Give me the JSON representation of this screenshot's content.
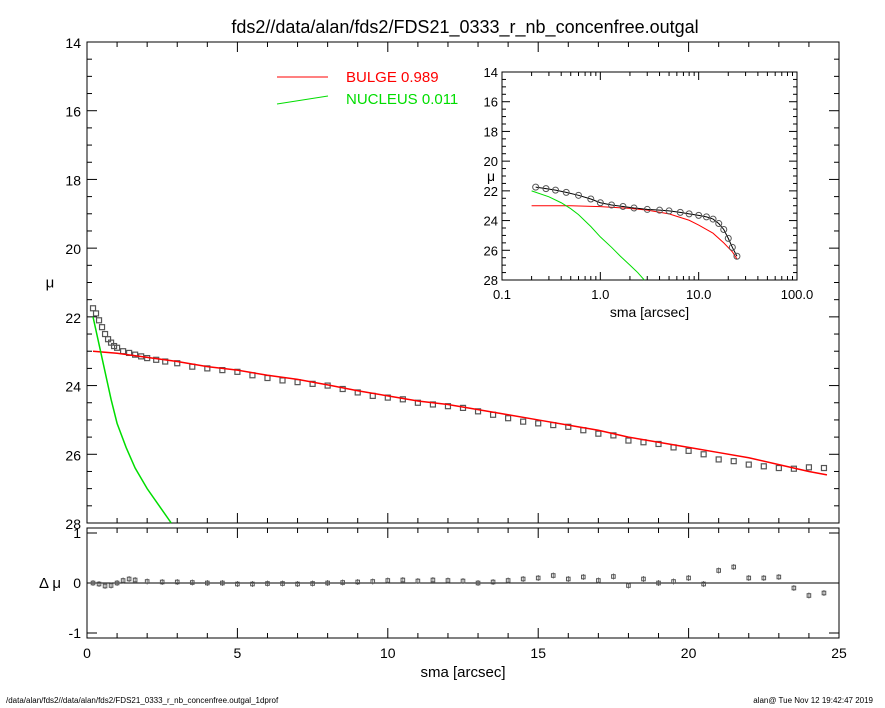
{
  "title": "fds2//data/alan/fds2/FDS21_0333_r_nb_concenfree.outgal",
  "footer": {
    "left": "/data/alan/fds2//data/alan/fds2/FDS21_0333_r_nb_concenfree.outgal_1dprof",
    "right": "alan@  Tue Nov 12 19:42:47 2019"
  },
  "colors": {
    "bulge": "#ff0000",
    "nucleus": "#00dd00",
    "points": "#555555",
    "axes": "#000000"
  },
  "chart_data": [
    {
      "type": "scatter",
      "panel": "main",
      "xlabel": "sma [arcsec]",
      "ylabel": "μ",
      "xlim": [
        0,
        25
      ],
      "ylim": [
        28,
        14
      ],
      "x_ticks": [
        "0",
        "5",
        "10",
        "15",
        "20",
        "25"
      ],
      "y_ticks": [
        "14",
        "16",
        "18",
        "20",
        "22",
        "24",
        "26",
        "28"
      ],
      "legend": [
        {
          "name": "BULGE",
          "value": "0.989",
          "color": "#ff0000"
        },
        {
          "name": "NUCLEUS",
          "value": "0.011",
          "color": "#00dd00"
        }
      ],
      "series": [
        {
          "name": "data",
          "kind": "points",
          "x": [
            0.2,
            0.3,
            0.4,
            0.5,
            0.6,
            0.7,
            0.8,
            0.9,
            1.0,
            1.2,
            1.4,
            1.6,
            1.8,
            2.0,
            2.3,
            2.6,
            3.0,
            3.5,
            4.0,
            4.5,
            5.0,
            5.5,
            6.0,
            6.5,
            7.0,
            7.5,
            8.0,
            8.5,
            9.0,
            9.5,
            10.0,
            10.5,
            11.0,
            11.5,
            12.0,
            12.5,
            13.0,
            13.5,
            14.0,
            14.5,
            15.0,
            15.5,
            16.0,
            16.5,
            17.0,
            17.5,
            18.0,
            18.5,
            19.0,
            19.5,
            20.0,
            20.5,
            21.0,
            21.5,
            22.0,
            22.5,
            23.0,
            23.5,
            24.0,
            24.5
          ],
          "y": [
            21.75,
            21.9,
            22.1,
            22.3,
            22.5,
            22.65,
            22.75,
            22.85,
            22.9,
            23.0,
            23.05,
            23.1,
            23.15,
            23.2,
            23.25,
            23.3,
            23.35,
            23.45,
            23.5,
            23.55,
            23.6,
            23.7,
            23.78,
            23.85,
            23.9,
            23.95,
            24.0,
            24.1,
            24.2,
            24.3,
            24.35,
            24.4,
            24.5,
            24.55,
            24.6,
            24.65,
            24.75,
            24.85,
            24.95,
            25.05,
            25.1,
            25.15,
            25.2,
            25.3,
            25.4,
            25.45,
            25.6,
            25.65,
            25.7,
            25.8,
            25.9,
            26.0,
            26.15,
            26.2,
            26.3,
            26.35,
            26.4,
            26.42,
            26.38,
            26.4
          ]
        },
        {
          "name": "BULGE",
          "kind": "line",
          "x": [
            0.2,
            1,
            2,
            3,
            4,
            5,
            6,
            7,
            8,
            9,
            10,
            11,
            12,
            13,
            14,
            15,
            16,
            17,
            18,
            19,
            20,
            21,
            22,
            23,
            24,
            24.6
          ],
          "y": [
            23.0,
            23.06,
            23.18,
            23.3,
            23.45,
            23.55,
            23.7,
            23.82,
            23.98,
            24.15,
            24.3,
            24.45,
            24.55,
            24.7,
            24.85,
            25.0,
            25.15,
            25.3,
            25.5,
            25.65,
            25.8,
            25.95,
            26.1,
            26.3,
            26.5,
            26.6
          ]
        },
        {
          "name": "NUCLEUS",
          "kind": "line",
          "x": [
            0.2,
            0.4,
            0.6,
            0.8,
            1.0,
            1.3,
            1.6,
            2.0,
            2.4,
            2.8
          ],
          "y": [
            22.0,
            22.8,
            23.6,
            24.4,
            25.1,
            25.8,
            26.4,
            27.0,
            27.5,
            28.0
          ]
        }
      ]
    },
    {
      "type": "scatter",
      "panel": "residual",
      "xlabel": "sma [arcsec]",
      "ylabel": "Δ μ",
      "xlim": [
        0,
        25
      ],
      "ylim": [
        -1.1,
        1.1
      ],
      "y_ticks": [
        "1",
        "0",
        "-1"
      ],
      "series": [
        {
          "name": "residual",
          "x": [
            0.2,
            0.4,
            0.6,
            0.8,
            1.0,
            1.2,
            1.4,
            1.6,
            2.0,
            2.5,
            3.0,
            3.5,
            4.0,
            4.5,
            5.0,
            5.5,
            6.0,
            6.5,
            7.0,
            7.5,
            8.0,
            8.5,
            9.0,
            9.5,
            10.0,
            10.5,
            11.0,
            11.5,
            12.0,
            12.5,
            13.0,
            13.5,
            14.0,
            14.5,
            15.0,
            15.5,
            16.0,
            16.5,
            17.0,
            17.5,
            18.0,
            18.5,
            19.0,
            19.5,
            20.0,
            20.5,
            21.0,
            21.5,
            22.0,
            22.5,
            23.0,
            23.5,
            24.0,
            24.5
          ],
          "y": [
            0.0,
            -0.02,
            -0.06,
            -0.05,
            0.0,
            0.05,
            0.08,
            0.06,
            0.03,
            0.02,
            0.02,
            0.01,
            0.0,
            0.0,
            -0.02,
            -0.02,
            -0.01,
            -0.01,
            -0.02,
            -0.01,
            0.0,
            0.01,
            0.02,
            0.03,
            0.05,
            0.06,
            0.04,
            0.06,
            0.05,
            0.04,
            0.0,
            0.02,
            0.05,
            0.08,
            0.1,
            0.15,
            0.08,
            0.12,
            0.05,
            0.13,
            -0.05,
            0.08,
            0.0,
            0.03,
            0.1,
            -0.02,
            0.25,
            0.32,
            0.1,
            0.1,
            0.12,
            -0.1,
            -0.25,
            -0.2
          ]
        }
      ]
    },
    {
      "type": "scatter",
      "panel": "inset",
      "xlabel": "sma [arcsec]",
      "ylabel": "μ",
      "xscale": "log",
      "xlim": [
        0.1,
        100
      ],
      "ylim": [
        28,
        14
      ],
      "x_ticks": [
        "0.1",
        "1.0",
        "10.0",
        "100.0"
      ],
      "y_ticks": [
        "14",
        "16",
        "18",
        "20",
        "22",
        "24",
        "26",
        "28"
      ],
      "series": [
        {
          "name": "data",
          "kind": "points",
          "x": [
            0.22,
            0.28,
            0.35,
            0.45,
            0.6,
            0.8,
            1.0,
            1.3,
            1.7,
            2.2,
            3.0,
            4.0,
            5.0,
            6.5,
            8.0,
            10.0,
            12.0,
            14.0,
            16.0,
            18.0,
            20.0,
            22.0,
            24.5
          ],
          "y": [
            21.75,
            21.85,
            21.95,
            22.1,
            22.3,
            22.55,
            22.8,
            22.95,
            23.05,
            23.15,
            23.25,
            23.3,
            23.35,
            23.45,
            23.55,
            23.65,
            23.75,
            23.9,
            24.2,
            24.6,
            25.2,
            25.8,
            26.4
          ]
        },
        {
          "name": "BULGE",
          "kind": "line",
          "x": [
            0.2,
            0.5,
            1.0,
            2.0,
            3.0,
            5.0,
            8.0,
            10.0,
            14.0,
            18.0,
            22.0,
            24.6
          ],
          "y": [
            23.0,
            23.0,
            23.06,
            23.18,
            23.3,
            23.55,
            23.98,
            24.3,
            24.85,
            25.5,
            26.1,
            26.6
          ]
        },
        {
          "name": "NUCLEUS",
          "kind": "line",
          "x": [
            0.2,
            0.3,
            0.4,
            0.5,
            0.6,
            0.8,
            1.0,
            1.3,
            1.6,
            2.0,
            2.4,
            2.8
          ],
          "y": [
            22.0,
            22.4,
            22.8,
            23.2,
            23.6,
            24.4,
            25.1,
            25.8,
            26.4,
            27.0,
            27.5,
            28.0
          ]
        }
      ]
    }
  ]
}
